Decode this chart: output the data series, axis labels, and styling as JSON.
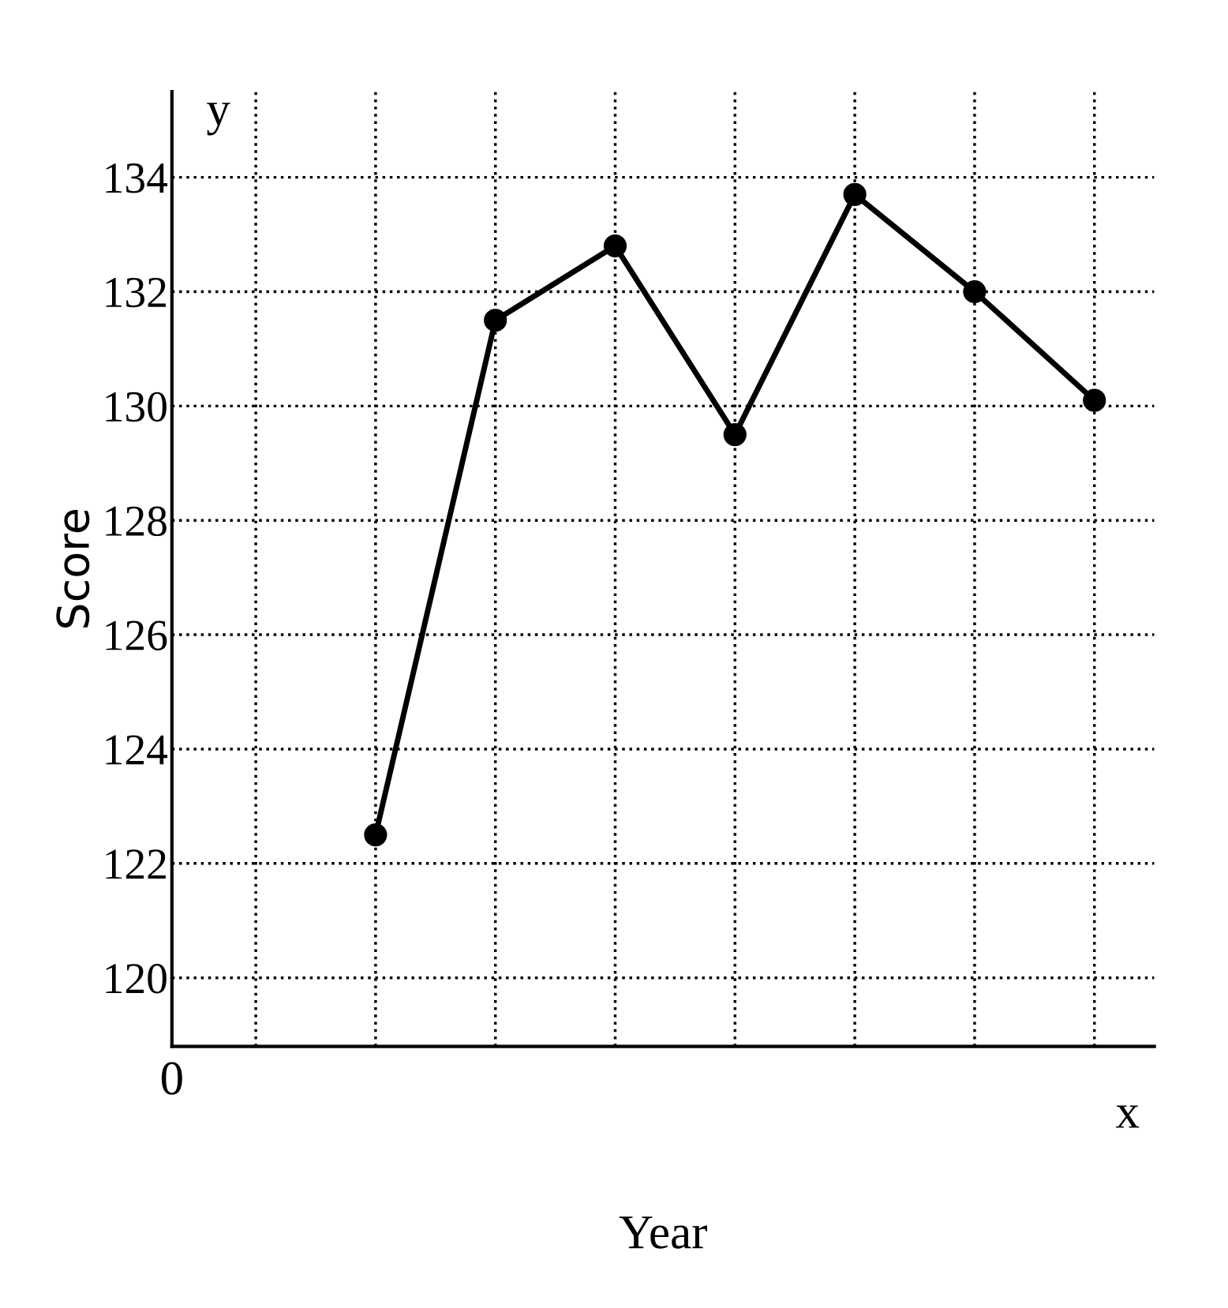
{
  "chart_data": {
    "type": "line",
    "xlabel": "Year",
    "ylabel": "Score",
    "categories": [
      null,
      null,
      null,
      null,
      null,
      null,
      null,
      null
    ],
    "series": [
      {
        "color": "#000000",
        "values": [
          null,
          122.5,
          131.5,
          132.8,
          129.5,
          133.7,
          132,
          130.1
        ]
      }
    ],
    "ylim": [
      118.8,
      135.5
    ],
    "yticks": [
      120,
      122,
      124,
      126,
      128,
      130,
      132,
      134
    ],
    "grid": true,
    "marker": "circle",
    "line_style": "solid",
    "annotations": [
      "y",
      "x",
      "0"
    ]
  }
}
